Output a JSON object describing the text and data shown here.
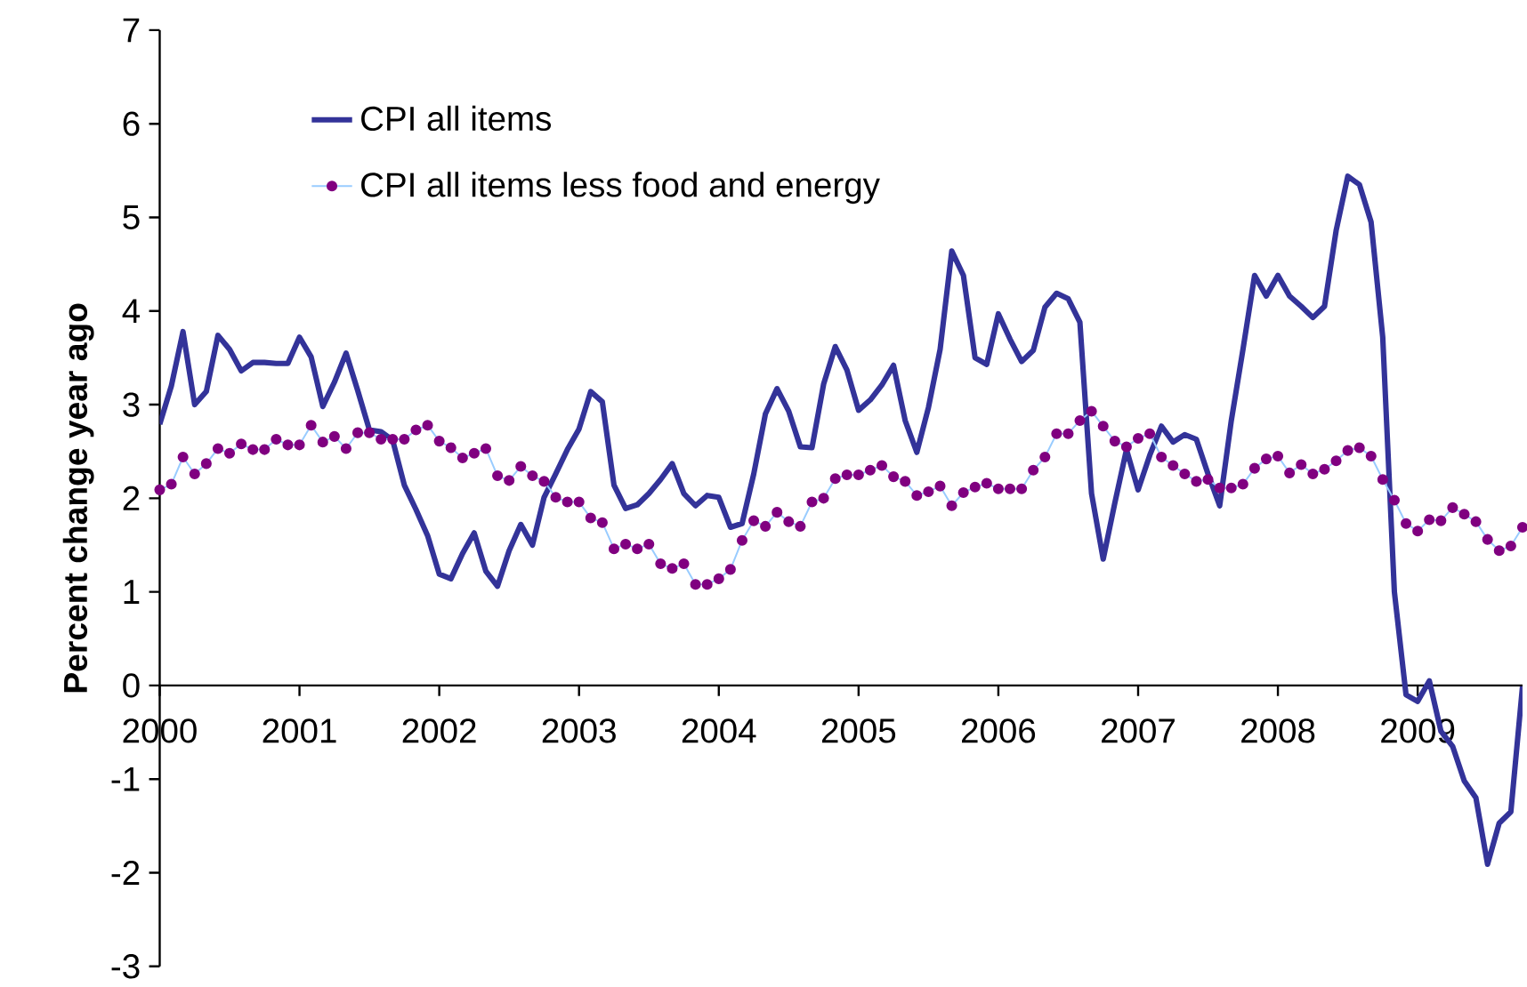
{
  "chart_data": {
    "type": "line",
    "ylabel": "Percent change year ago",
    "x": [
      "2000-01",
      "2000-02",
      "2000-03",
      "2000-04",
      "2000-05",
      "2000-06",
      "2000-07",
      "2000-08",
      "2000-09",
      "2000-10",
      "2000-11",
      "2000-12",
      "2001-01",
      "2001-02",
      "2001-03",
      "2001-04",
      "2001-05",
      "2001-06",
      "2001-07",
      "2001-08",
      "2001-09",
      "2001-10",
      "2001-11",
      "2001-12",
      "2002-01",
      "2002-02",
      "2002-03",
      "2002-04",
      "2002-05",
      "2002-06",
      "2002-07",
      "2002-08",
      "2002-09",
      "2002-10",
      "2002-11",
      "2002-12",
      "2003-01",
      "2003-02",
      "2003-03",
      "2003-04",
      "2003-05",
      "2003-06",
      "2003-07",
      "2003-08",
      "2003-09",
      "2003-10",
      "2003-11",
      "2003-12",
      "2004-01",
      "2004-02",
      "2004-03",
      "2004-04",
      "2004-05",
      "2004-06",
      "2004-07",
      "2004-08",
      "2004-09",
      "2004-10",
      "2004-11",
      "2004-12",
      "2005-01",
      "2005-02",
      "2005-03",
      "2005-04",
      "2005-05",
      "2005-06",
      "2005-07",
      "2005-08",
      "2005-09",
      "2005-10",
      "2005-11",
      "2005-12",
      "2006-01",
      "2006-02",
      "2006-03",
      "2006-04",
      "2006-05",
      "2006-06",
      "2006-07",
      "2006-08",
      "2006-09",
      "2006-10",
      "2006-11",
      "2006-12",
      "2007-01",
      "2007-02",
      "2007-03",
      "2007-04",
      "2007-05",
      "2007-06",
      "2007-07",
      "2007-08",
      "2007-09",
      "2007-10",
      "2007-11",
      "2007-12",
      "2008-01",
      "2008-02",
      "2008-03",
      "2008-04",
      "2008-05",
      "2008-06",
      "2008-07",
      "2008-08",
      "2008-09",
      "2008-10",
      "2008-11",
      "2008-12",
      "2009-01",
      "2009-02",
      "2009-03",
      "2009-04",
      "2009-05",
      "2009-06",
      "2009-07",
      "2009-08",
      "2009-09",
      "2009-10"
    ],
    "series": [
      {
        "name": "CPI all items",
        "color": "#333399",
        "marker": "none",
        "values": [
          2.79,
          3.2,
          3.78,
          3.0,
          3.14,
          3.74,
          3.59,
          3.36,
          3.45,
          3.45,
          3.44,
          3.44,
          3.72,
          3.51,
          2.98,
          3.24,
          3.55,
          3.15,
          2.73,
          2.71,
          2.62,
          2.14,
          1.88,
          1.6,
          1.19,
          1.14,
          1.41,
          1.63,
          1.22,
          1.06,
          1.44,
          1.72,
          1.5,
          2.01,
          2.26,
          2.52,
          2.74,
          3.14,
          3.03,
          2.14,
          1.89,
          1.93,
          2.05,
          2.2,
          2.37,
          2.05,
          1.92,
          2.03,
          2.01,
          1.69,
          1.73,
          2.26,
          2.9,
          3.17,
          2.93,
          2.55,
          2.54,
          3.22,
          3.62,
          3.37,
          2.94,
          3.05,
          3.21,
          3.42,
          2.83,
          2.49,
          2.97,
          3.59,
          4.64,
          4.38,
          3.5,
          3.43,
          3.97,
          3.7,
          3.46,
          3.58,
          4.04,
          4.19,
          4.13,
          3.88,
          2.05,
          1.35,
          1.95,
          2.52,
          2.09,
          2.46,
          2.77,
          2.6,
          2.68,
          2.63,
          2.26,
          1.92,
          2.83,
          3.59,
          4.38,
          4.16,
          4.38,
          4.16,
          4.05,
          3.93,
          4.05,
          4.86,
          5.44,
          5.35,
          4.95,
          3.72,
          1.0,
          -0.1,
          -0.17,
          0.05,
          -0.49,
          -0.65,
          -1.02,
          -1.2,
          -1.91,
          -1.47,
          -1.35,
          -0.01
        ]
      },
      {
        "name": "CPI all items less food and energy",
        "color": "#800080",
        "marker": "circle",
        "values": [
          2.09,
          2.15,
          2.44,
          2.26,
          2.37,
          2.53,
          2.48,
          2.58,
          2.52,
          2.52,
          2.63,
          2.57,
          2.57,
          2.78,
          2.6,
          2.66,
          2.53,
          2.7,
          2.7,
          2.63,
          2.63,
          2.63,
          2.73,
          2.78,
          2.61,
          2.54,
          2.43,
          2.48,
          2.53,
          2.24,
          2.19,
          2.34,
          2.24,
          2.18,
          2.01,
          1.96,
          1.96,
          1.79,
          1.74,
          1.46,
          1.51,
          1.46,
          1.51,
          1.3,
          1.25,
          1.3,
          1.08,
          1.08,
          1.14,
          1.24,
          1.55,
          1.76,
          1.7,
          1.85,
          1.75,
          1.7,
          1.96,
          2.0,
          2.21,
          2.25,
          2.25,
          2.3,
          2.35,
          2.23,
          2.18,
          2.03,
          2.07,
          2.13,
          1.92,
          2.06,
          2.12,
          2.16,
          2.1,
          2.1,
          2.1,
          2.3,
          2.44,
          2.69,
          2.69,
          2.83,
          2.93,
          2.77,
          2.61,
          2.55,
          2.64,
          2.69,
          2.44,
          2.35,
          2.26,
          2.18,
          2.2,
          2.11,
          2.11,
          2.15,
          2.32,
          2.42,
          2.45,
          2.27,
          2.36,
          2.26,
          2.31,
          2.4,
          2.51,
          2.54,
          2.45,
          2.2,
          1.98,
          1.73,
          1.65,
          1.77,
          1.76,
          1.9,
          1.83,
          1.75,
          1.56,
          1.44,
          1.49,
          1.69
        ]
      }
    ],
    "xlim": [
      "2000-01",
      "2009-10"
    ],
    "xticks": [
      "2000",
      "2001",
      "2002",
      "2003",
      "2004",
      "2005",
      "2006",
      "2007",
      "2008",
      "2009"
    ],
    "ylim": [
      -3,
      7
    ],
    "yticks": [
      -3,
      -2,
      -1,
      0,
      1,
      2,
      3,
      4,
      5,
      6,
      7
    ],
    "grid": false,
    "legend": "top left"
  }
}
